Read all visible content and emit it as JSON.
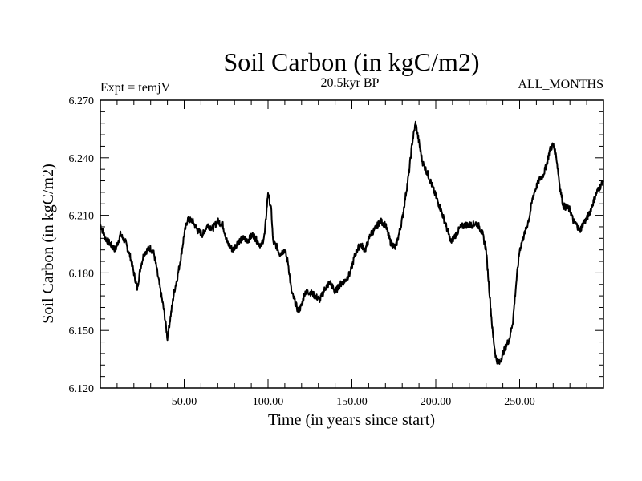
{
  "chart_data": {
    "type": "line",
    "title": "Soil Carbon (in kgC/m2)",
    "subtitle_left": "Expt = temjV",
    "subtitle_center": "20.5kyr BP",
    "subtitle_right": "ALL_MONTHS",
    "xlabel": "Time (in years since start)",
    "ylabel": "Soil Carbon (in kgC/m2)",
    "xlim": [
      0,
      300
    ],
    "ylim": [
      6.12,
      6.27
    ],
    "x_ticks": [
      50,
      100,
      150,
      200,
      250
    ],
    "x_tick_labels": [
      "50.00",
      "100.00",
      "150.00",
      "200.00",
      "250.00"
    ],
    "y_ticks": [
      6.12,
      6.15,
      6.18,
      6.21,
      6.24,
      6.27
    ],
    "y_tick_labels": [
      "6.120",
      "6.150",
      "6.180",
      "6.210",
      "6.240",
      "6.270"
    ],
    "series": [
      {
        "name": "Soil Carbon",
        "x": [
          0,
          3,
          6,
          9,
          12,
          15,
          18,
          20,
          22,
          24,
          26,
          28,
          30,
          32,
          34,
          36,
          38,
          40,
          42,
          44,
          46,
          48,
          50,
          52,
          55,
          58,
          61,
          64,
          67,
          70,
          73,
          76,
          79,
          82,
          85,
          88,
          91,
          94,
          96,
          98,
          100,
          102,
          103,
          105,
          107,
          110,
          112,
          114,
          116,
          118,
          120,
          122,
          125,
          128,
          131,
          134,
          137,
          140,
          143,
          146,
          149,
          152,
          155,
          158,
          161,
          164,
          167,
          170,
          173,
          176,
          178,
          180,
          182,
          184,
          186,
          188,
          190,
          192,
          194,
          196,
          198,
          200,
          203,
          206,
          209,
          212,
          215,
          218,
          220,
          222,
          224,
          226,
          228,
          230,
          232,
          234,
          236,
          238,
          240,
          242,
          244,
          246,
          248,
          250,
          252,
          254,
          256,
          258,
          260,
          262,
          264,
          266,
          268,
          270,
          272,
          274,
          276,
          278,
          280,
          282,
          284,
          286,
          288,
          290,
          292,
          294,
          296,
          298,
          300
        ],
        "values": [
          6.205,
          6.198,
          6.195,
          6.192,
          6.2,
          6.196,
          6.188,
          6.18,
          6.172,
          6.183,
          6.19,
          6.192,
          6.193,
          6.19,
          6.18,
          6.17,
          6.16,
          6.146,
          6.158,
          6.17,
          6.178,
          6.188,
          6.2,
          6.208,
          6.207,
          6.202,
          6.2,
          6.205,
          6.203,
          6.207,
          6.205,
          6.195,
          6.192,
          6.196,
          6.198,
          6.197,
          6.2,
          6.196,
          6.194,
          6.2,
          6.222,
          6.212,
          6.196,
          6.194,
          6.19,
          6.192,
          6.185,
          6.17,
          6.165,
          6.16,
          6.163,
          6.17,
          6.17,
          6.168,
          6.166,
          6.172,
          6.175,
          6.17,
          6.174,
          6.176,
          6.18,
          6.19,
          6.195,
          6.192,
          6.2,
          6.203,
          6.207,
          6.205,
          6.196,
          6.193,
          6.2,
          6.208,
          6.22,
          6.232,
          6.248,
          6.258,
          6.248,
          6.238,
          6.234,
          6.23,
          6.225,
          6.22,
          6.213,
          6.205,
          6.196,
          6.2,
          6.204,
          6.205,
          6.205,
          6.205,
          6.206,
          6.204,
          6.2,
          6.192,
          6.17,
          6.148,
          6.135,
          6.133,
          6.138,
          6.142,
          6.146,
          6.155,
          6.175,
          6.192,
          6.198,
          6.203,
          6.21,
          6.22,
          6.225,
          6.229,
          6.231,
          6.236,
          6.244,
          6.247,
          6.24,
          6.225,
          6.215,
          6.214,
          6.213,
          6.207,
          6.205,
          6.202,
          6.206,
          6.208,
          6.212,
          6.217,
          6.222,
          6.225,
          6.228
        ]
      }
    ]
  }
}
